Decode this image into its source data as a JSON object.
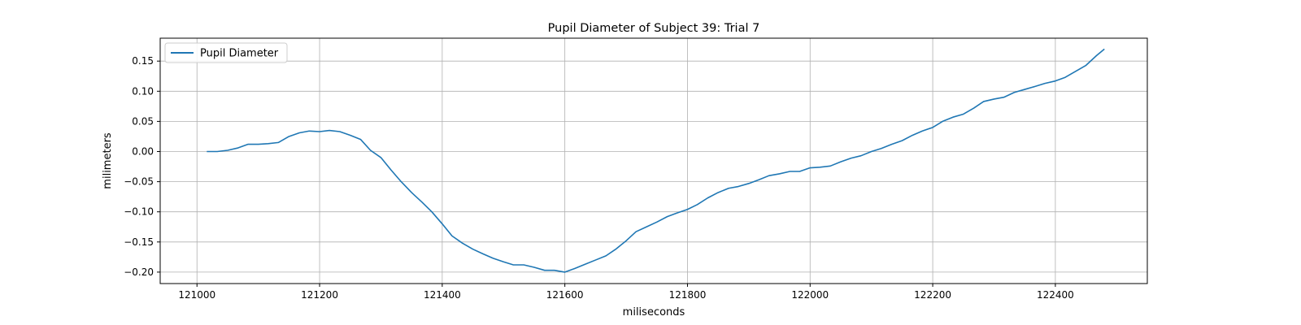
{
  "chart_data": {
    "type": "line",
    "title": "Pupil Diameter of Subject 39: Trial 7",
    "xlabel": "miliseconds",
    "ylabel": "milimeters",
    "xlim": [
      120940,
      122550
    ],
    "ylim": [
      -0.219,
      0.188
    ],
    "xticks": [
      121000,
      121200,
      121400,
      121600,
      121800,
      122000,
      122200,
      122400
    ],
    "yticks": [
      -0.2,
      -0.15,
      -0.1,
      -0.05,
      0.0,
      0.05,
      0.1,
      0.15
    ],
    "ytick_labels": [
      "−0.20",
      "−0.15",
      "−0.10",
      "−0.05",
      "0.00",
      "0.05",
      "0.10",
      "0.15"
    ],
    "grid": true,
    "legend": "top-left",
    "series": [
      {
        "name": "Pupil Diameter",
        "color": "#1f77b4",
        "x": [
          121016,
          121033,
          121050,
          121067,
          121083,
          121100,
          121116,
          121133,
          121150,
          121167,
          121183,
          121200,
          121216,
          121233,
          121250,
          121267,
          121283,
          121300,
          121316,
          121333,
          121350,
          121367,
          121383,
          121400,
          121416,
          121433,
          121450,
          121467,
          121483,
          121500,
          121516,
          121533,
          121550,
          121567,
          121583,
          121600,
          121616,
          121633,
          121650,
          121667,
          121683,
          121700,
          121716,
          121733,
          121750,
          121767,
          121783,
          121800,
          121816,
          121833,
          121850,
          121867,
          121883,
          121900,
          121916,
          121933,
          121950,
          121967,
          121983,
          122000,
          122016,
          122033,
          122050,
          122067,
          122083,
          122100,
          122116,
          122133,
          122150,
          122167,
          122183,
          122200,
          122216,
          122233,
          122250,
          122267,
          122283,
          122300,
          122316,
          122333,
          122350,
          122367,
          122383,
          122400,
          122416,
          122433,
          122450,
          122467,
          122480
        ],
        "y": [
          0.0,
          0.0,
          0.002,
          0.006,
          0.012,
          0.012,
          0.013,
          0.015,
          0.025,
          0.031,
          0.034,
          0.033,
          0.035,
          0.033,
          0.027,
          0.02,
          0.002,
          -0.01,
          -0.03,
          -0.05,
          -0.068,
          -0.084,
          -0.1,
          -0.12,
          -0.14,
          -0.152,
          -0.162,
          -0.17,
          -0.177,
          -0.183,
          -0.188,
          -0.188,
          -0.192,
          -0.197,
          -0.197,
          -0.2,
          -0.194,
          -0.187,
          -0.18,
          -0.173,
          -0.162,
          -0.148,
          -0.133,
          -0.125,
          -0.117,
          -0.108,
          -0.102,
          -0.096,
          -0.088,
          -0.077,
          -0.068,
          -0.061,
          -0.058,
          -0.053,
          -0.047,
          -0.04,
          -0.037,
          -0.033,
          -0.033,
          -0.027,
          -0.026,
          -0.024,
          -0.017,
          -0.011,
          -0.007,
          0.0,
          0.005,
          0.012,
          0.018,
          0.027,
          0.034,
          0.04,
          0.05,
          0.057,
          0.062,
          0.072,
          0.083,
          0.087,
          0.09,
          0.098,
          0.103,
          0.108,
          0.113,
          0.117,
          0.123,
          0.133,
          0.143,
          0.159,
          0.17
        ]
      }
    ]
  }
}
